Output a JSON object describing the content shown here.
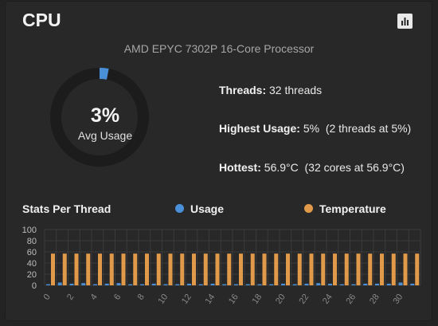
{
  "card": {
    "title": "CPU",
    "stats_icon": "bar-chart-icon",
    "processor": "AMD EPYC 7302P 16-Core Processor"
  },
  "gauge": {
    "value_label": "3%",
    "value": 3,
    "label": "Avg Usage",
    "track_color": "#1c1c1c",
    "fill_color": "#4a90d9"
  },
  "info": {
    "threads_label": "Threads:",
    "threads_value": "32 threads",
    "highest_label": "Highest Usage:",
    "highest_value": "5%  (2 threads at 5%)",
    "hottest_label": "Hottest:",
    "hottest_value": "56.9°C  (32 cores at 56.9°C)"
  },
  "legend": {
    "title": "Stats Per Thread",
    "usage_label": "Usage",
    "temp_label": "Temperature",
    "usage_color": "#4a90d9",
    "temp_color": "#e09a4a"
  },
  "chart_data": {
    "type": "bar",
    "categories": [
      "0",
      "1",
      "2",
      "3",
      "4",
      "5",
      "6",
      "7",
      "8",
      "9",
      "10",
      "11",
      "12",
      "13",
      "14",
      "15",
      "16",
      "17",
      "18",
      "19",
      "20",
      "21",
      "22",
      "23",
      "24",
      "25",
      "26",
      "27",
      "28",
      "29",
      "30",
      "31"
    ],
    "x_tick_labels": [
      "0",
      "2",
      "4",
      "6",
      "8",
      "10",
      "12",
      "14",
      "16",
      "18",
      "20",
      "22",
      "24",
      "26",
      "28",
      "30"
    ],
    "y_ticks": [
      0,
      20,
      40,
      60,
      80,
      100
    ],
    "ylim": [
      0,
      100
    ],
    "series": [
      {
        "name": "Usage",
        "values": [
          2,
          5,
          3,
          4,
          2,
          3,
          4,
          2,
          2,
          3,
          2,
          2,
          3,
          2,
          3,
          2,
          2,
          2,
          2,
          2,
          3,
          2,
          3,
          4,
          3,
          2,
          2,
          3,
          3,
          3,
          5,
          3
        ]
      },
      {
        "name": "Temperature",
        "values": [
          56.9,
          56.9,
          56.9,
          56.9,
          56.9,
          56.9,
          56.9,
          56.9,
          56.9,
          56.9,
          56.9,
          56.9,
          56.9,
          56.9,
          56.9,
          56.9,
          56.9,
          56.9,
          56.9,
          56.9,
          56.9,
          56.9,
          56.9,
          56.9,
          56.9,
          56.9,
          56.9,
          56.9,
          56.9,
          56.9,
          56.9,
          56.9
        ]
      }
    ],
    "grid": true,
    "grid_color": "#3a3a3a",
    "tick_color": "#8a8a8a"
  }
}
